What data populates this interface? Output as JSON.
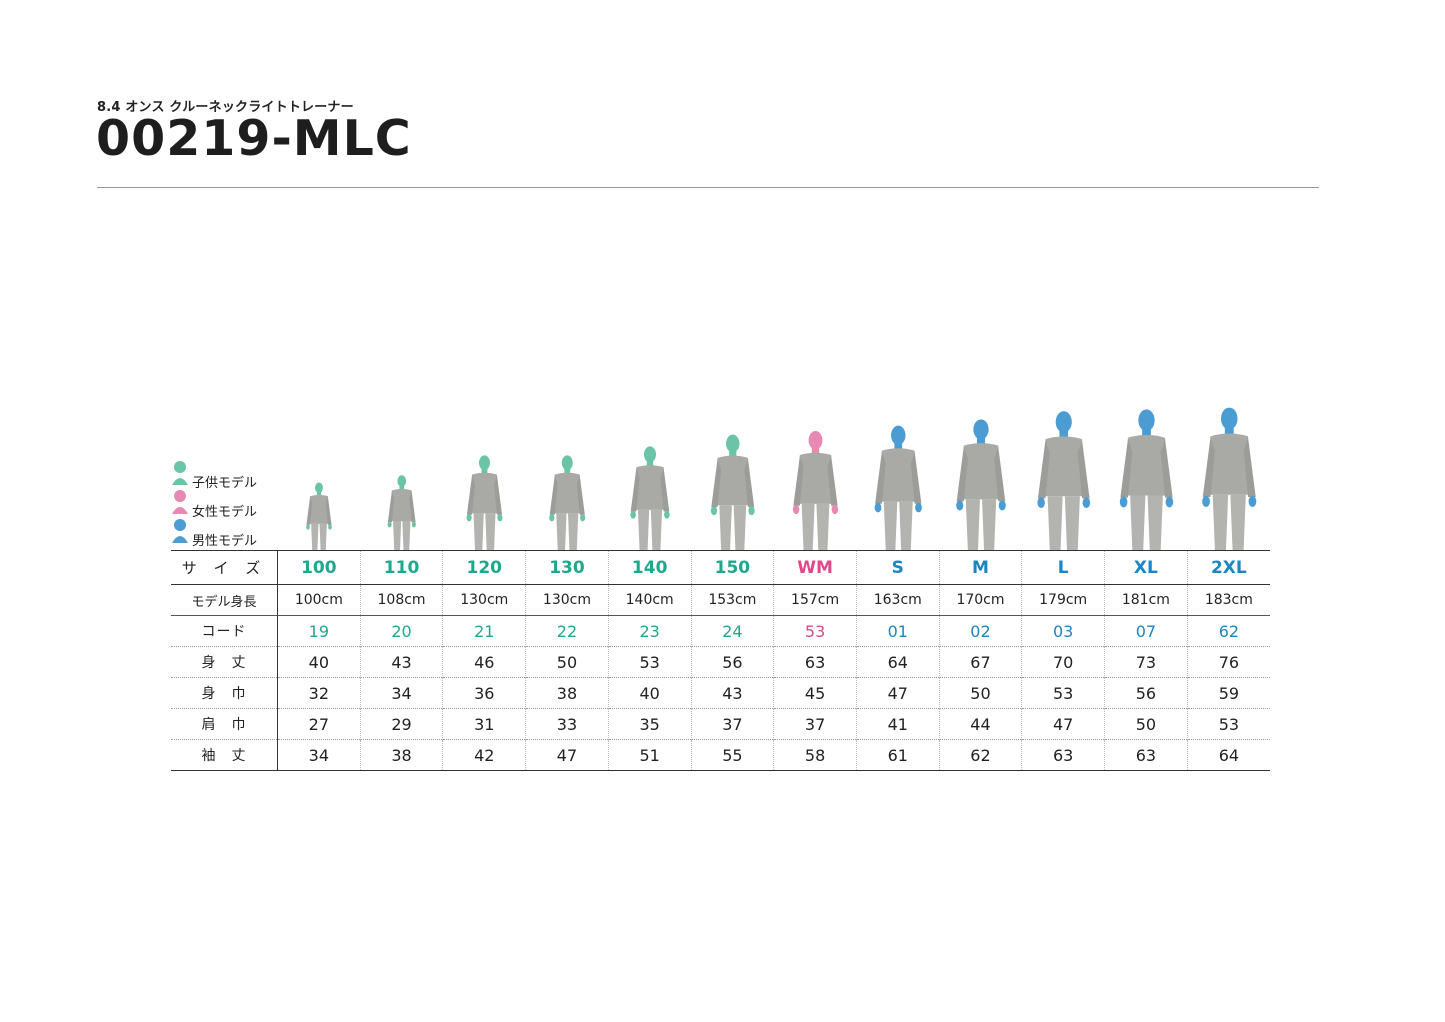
{
  "header": {
    "subtitle": "8.4 オンス クルーネックライトトレーナー",
    "title": "00219-MLC"
  },
  "legend": [
    {
      "label": "子供モデル",
      "icon": "child-model-icon",
      "color": "#6cc4a8"
    },
    {
      "label": "女性モデル",
      "icon": "female-model-icon",
      "color": "#e889b3"
    },
    {
      "label": "男性モデル",
      "icon": "male-model-icon",
      "color": "#4b9cd3"
    }
  ],
  "colors": {
    "child": "#1fa98c",
    "female": "#e0488a",
    "male": "#1a86c4",
    "garment": "#a9aaa6"
  },
  "table": {
    "row_labels": {
      "size": "サ イ ズ",
      "height": "モデル身長",
      "code": "コード",
      "body_length": "身　丈",
      "body_width": "身　巾",
      "shoulder": "肩　巾",
      "sleeve": "袖　丈"
    },
    "columns": [
      {
        "size": "100",
        "group": "child",
        "height": "100cm",
        "code": "19",
        "body_length": "40",
        "body_width": "32",
        "shoulder": "27",
        "sleeve": "34"
      },
      {
        "size": "110",
        "group": "child",
        "height": "108cm",
        "code": "20",
        "body_length": "43",
        "body_width": "34",
        "shoulder": "29",
        "sleeve": "38"
      },
      {
        "size": "120",
        "group": "child",
        "height": "130cm",
        "code": "21",
        "body_length": "46",
        "body_width": "36",
        "shoulder": "31",
        "sleeve": "42"
      },
      {
        "size": "130",
        "group": "child",
        "height": "130cm",
        "code": "22",
        "body_length": "50",
        "body_width": "38",
        "shoulder": "33",
        "sleeve": "47"
      },
      {
        "size": "140",
        "group": "child",
        "height": "140cm",
        "code": "23",
        "body_length": "53",
        "body_width": "40",
        "shoulder": "35",
        "sleeve": "51"
      },
      {
        "size": "150",
        "group": "child",
        "height": "153cm",
        "code": "24",
        "body_length": "56",
        "body_width": "43",
        "shoulder": "37",
        "sleeve": "55"
      },
      {
        "size": "WM",
        "group": "female",
        "height": "157cm",
        "code": "53",
        "body_length": "63",
        "body_width": "45",
        "shoulder": "37",
        "sleeve": "58"
      },
      {
        "size": "S",
        "group": "male",
        "height": "163cm",
        "code": "01",
        "body_length": "64",
        "body_width": "47",
        "shoulder": "41",
        "sleeve": "61"
      },
      {
        "size": "M",
        "group": "male",
        "height": "170cm",
        "code": "02",
        "body_length": "67",
        "body_width": "50",
        "shoulder": "44",
        "sleeve": "62"
      },
      {
        "size": "L",
        "group": "male",
        "height": "179cm",
        "code": "03",
        "body_length": "70",
        "body_width": "53",
        "shoulder": "47",
        "sleeve": "63"
      },
      {
        "size": "XL",
        "group": "male",
        "height": "181cm",
        "code": "07",
        "body_length": "73",
        "body_width": "56",
        "shoulder": "50",
        "sleeve": "63"
      },
      {
        "size": "2XL",
        "group": "male",
        "height": "183cm",
        "code": "62",
        "body_length": "76",
        "body_width": "59",
        "shoulder": "53",
        "sleeve": "64"
      }
    ]
  }
}
